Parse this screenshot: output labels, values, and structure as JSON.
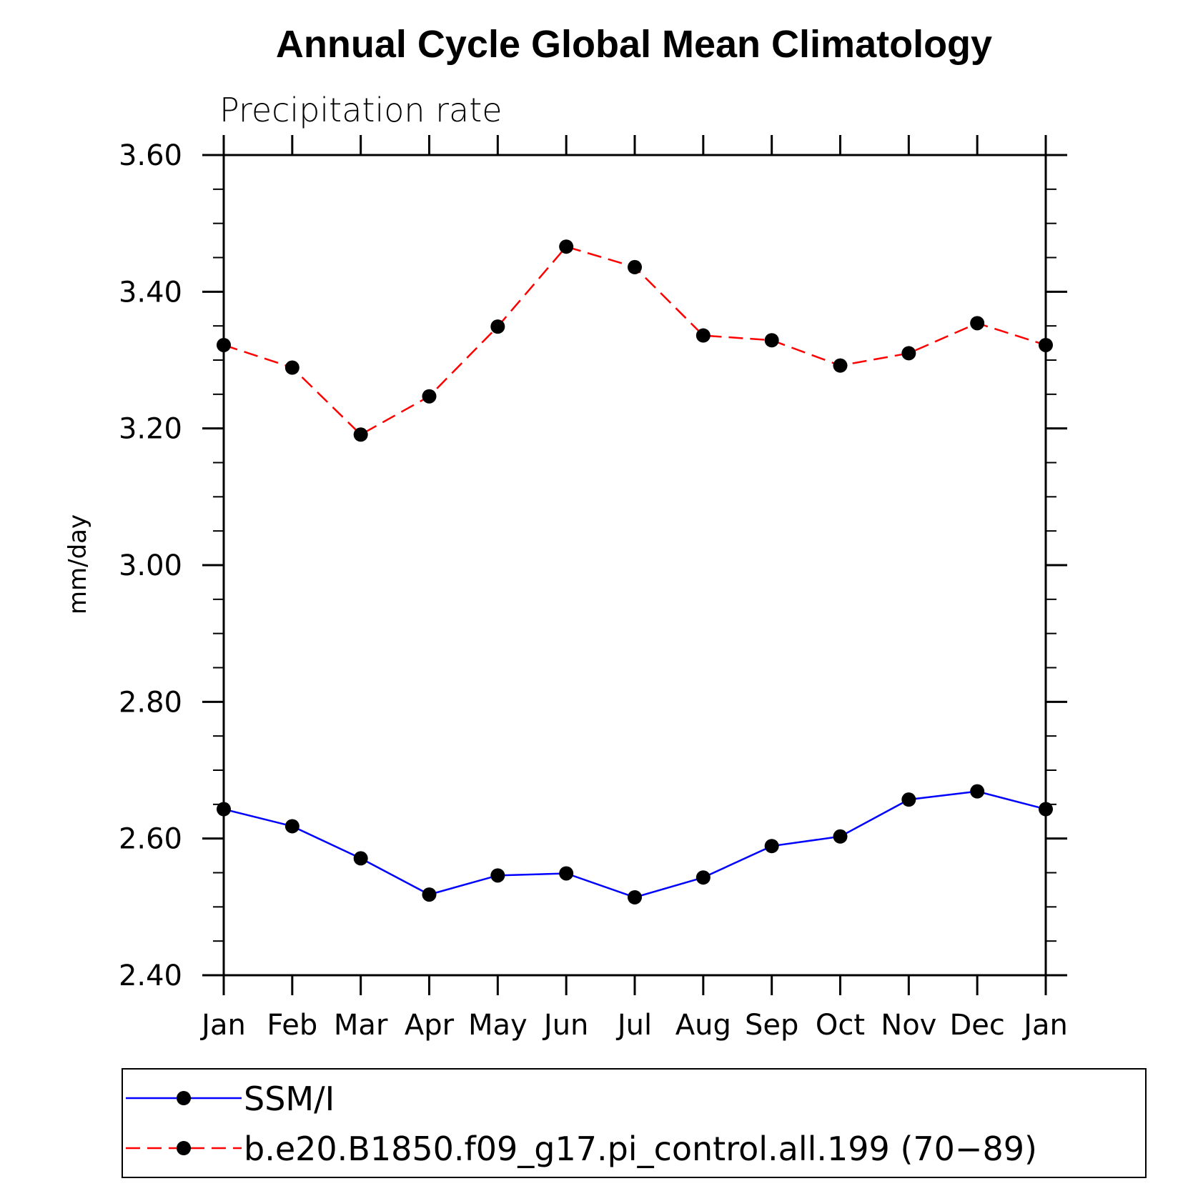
{
  "chart_data": {
    "type": "line",
    "title": "Annual Cycle Global Mean Climatology",
    "subtitle": "Precipitation rate",
    "xlabel": "",
    "ylabel": "mm/day",
    "categories": [
      "Jan",
      "Feb",
      "Mar",
      "Apr",
      "May",
      "Jun",
      "Jul",
      "Aug",
      "Sep",
      "Oct",
      "Nov",
      "Dec",
      "Jan"
    ],
    "ylim": [
      2.4,
      3.6
    ],
    "yticks": [
      "2.40",
      "2.60",
      "2.80",
      "3.00",
      "3.20",
      "3.40",
      "3.60"
    ],
    "yminor_step": 0.05,
    "legend_position": "bottom",
    "series": [
      {
        "name": "SSM/I",
        "color": "#0000ff",
        "line_style": "solid",
        "marker": "filled-circle",
        "values": [
          2.643,
          2.618,
          2.571,
          2.518,
          2.546,
          2.549,
          2.514,
          2.543,
          2.589,
          2.603,
          2.657,
          2.669,
          2.643
        ]
      },
      {
        "name": "b.e20.B1850.f09_g17.pi_control.all.199 (70−89)",
        "color": "#ff0000",
        "line_style": "dashed",
        "marker": "filled-circle",
        "values": [
          3.322,
          3.289,
          3.191,
          3.247,
          3.349,
          3.466,
          3.436,
          3.336,
          3.329,
          3.292,
          3.31,
          3.354,
          3.322
        ]
      }
    ]
  }
}
